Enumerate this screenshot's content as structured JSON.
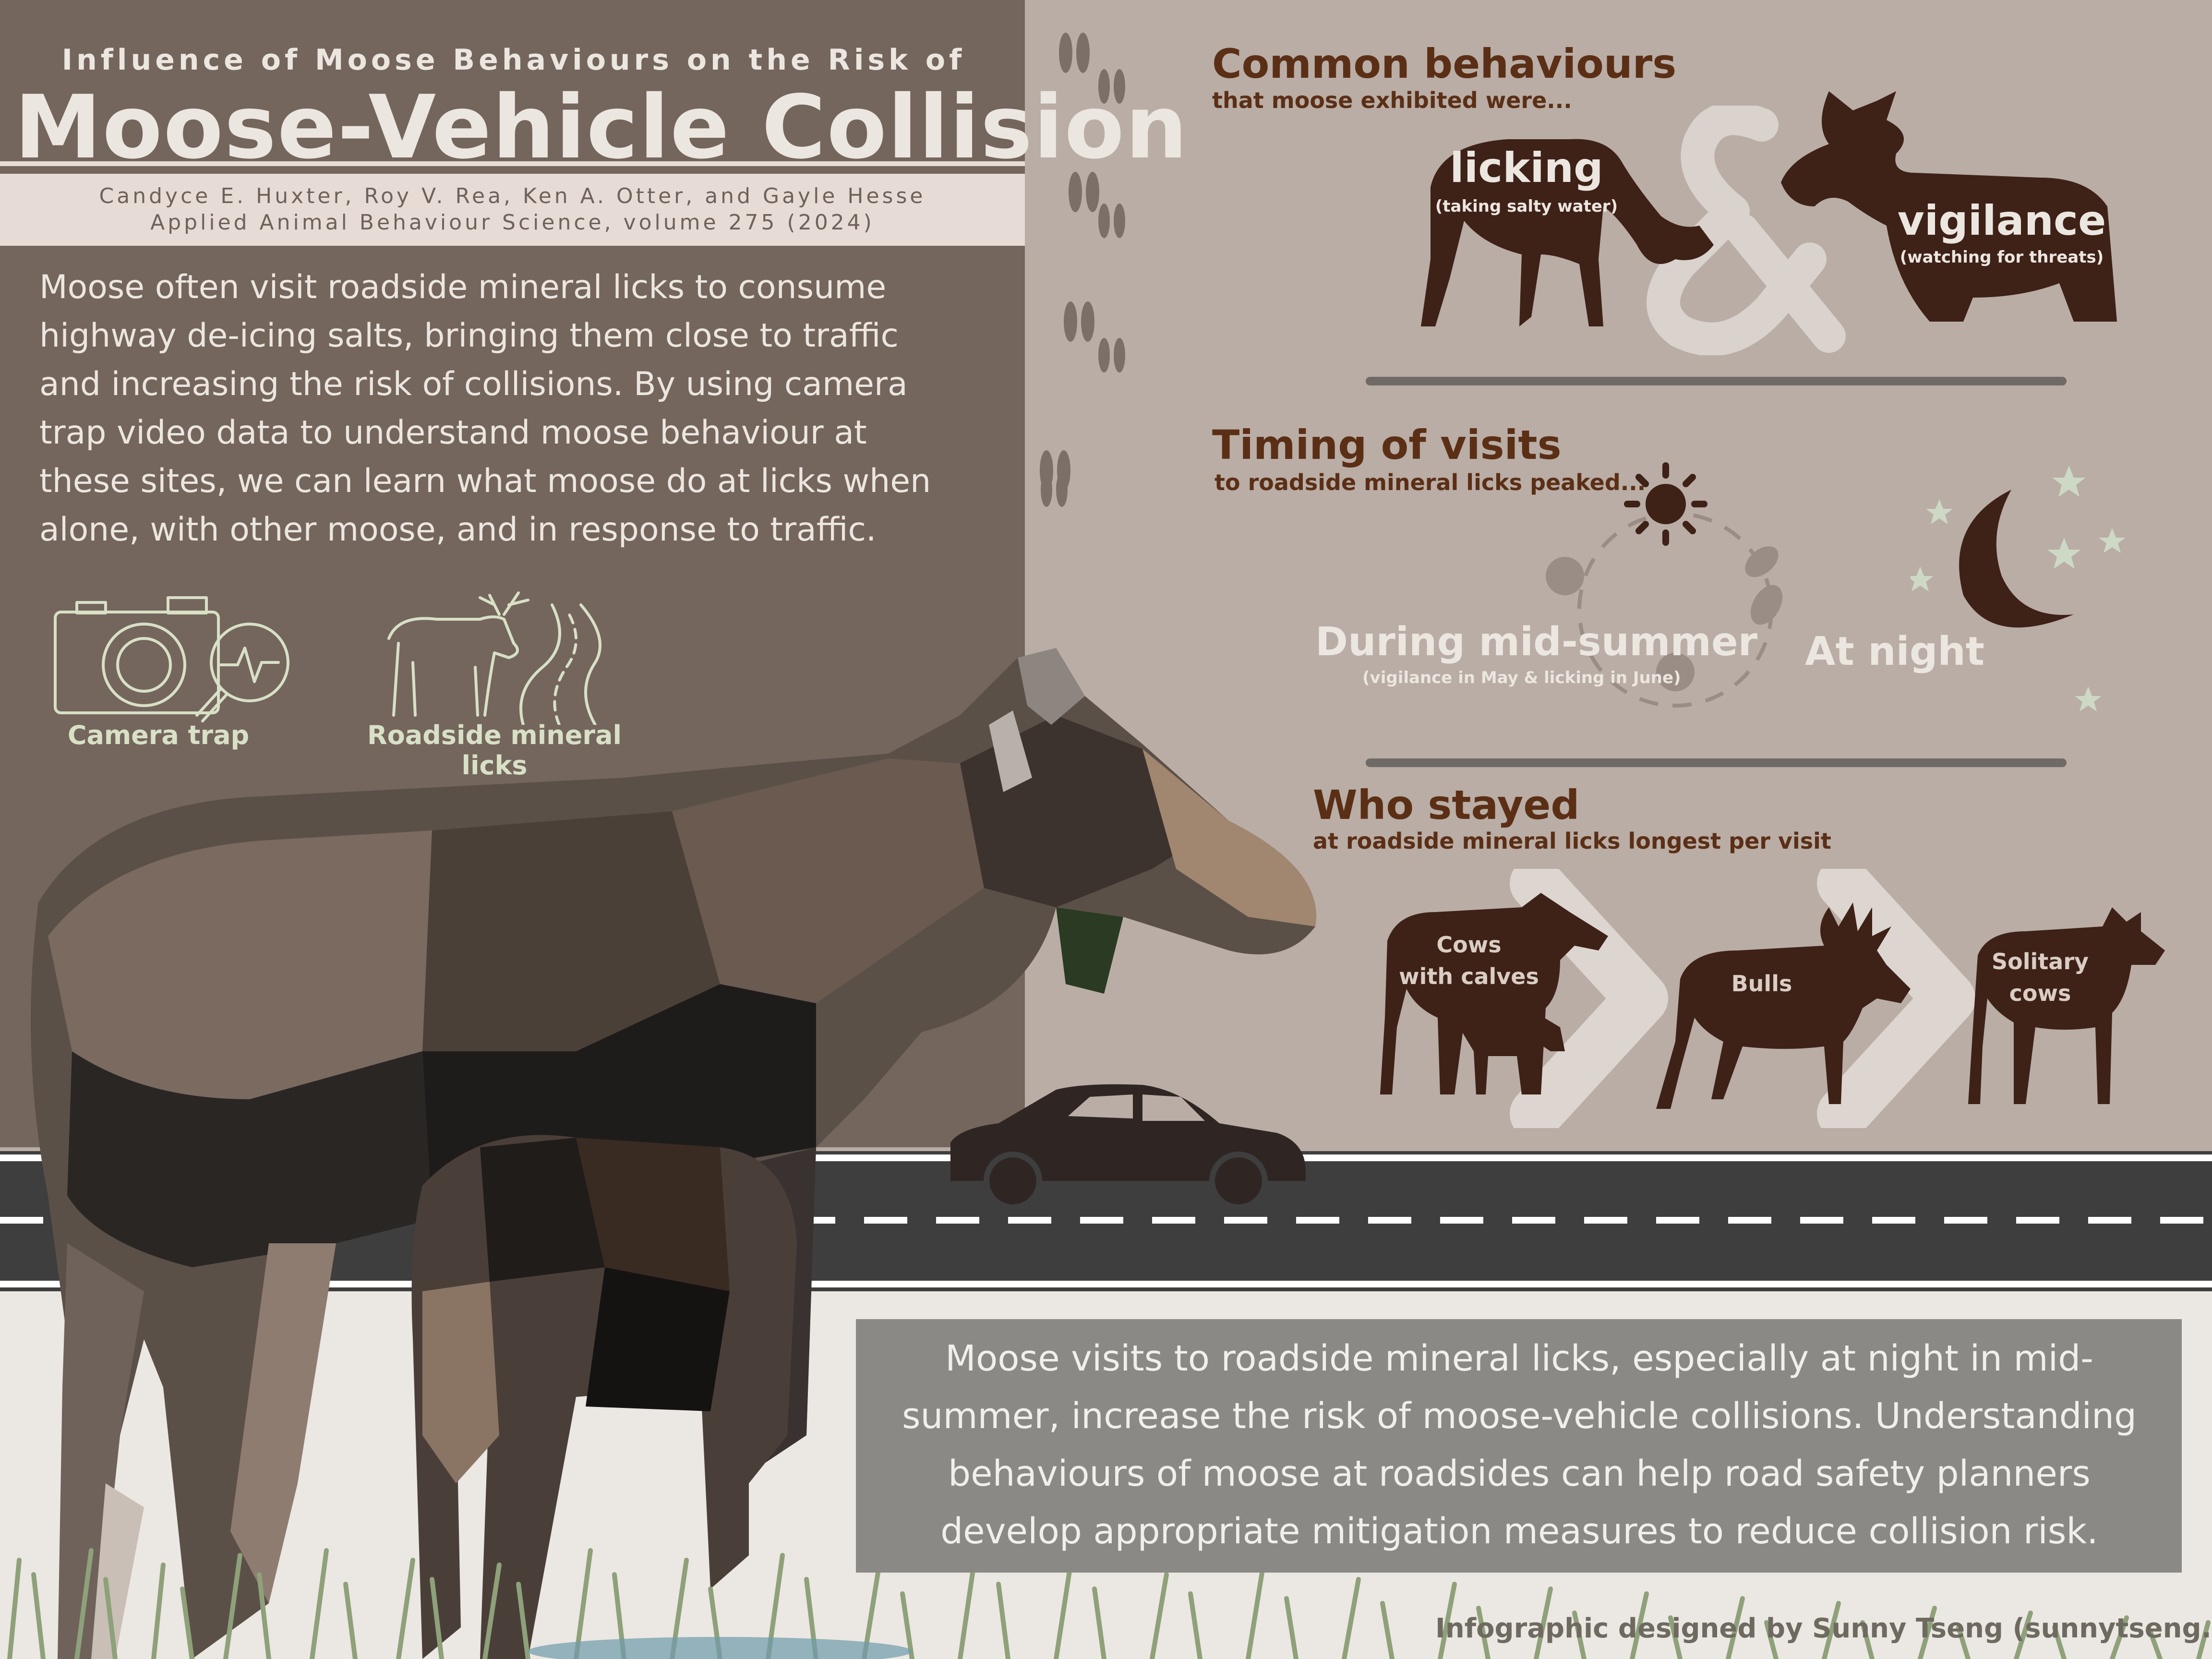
{
  "header": {
    "subtitle": "Influence of Moose Behaviours on the Risk of",
    "title": "Moose-Vehicle Collision",
    "authors": "Candyce E. Huxter, Roy V. Rea, Ken A. Otter, and Gayle Hesse",
    "journal": "Applied Animal Behaviour Science, volume 275 (2024)"
  },
  "intro": {
    "lines": [
      "Moose often visit roadside mineral licks to consume",
      "highway de-icing salts, bringing them close to traffic",
      "and increasing the risk of collisions. By using camera",
      "trap video data to understand moose behaviour at",
      "these sites, we can learn what moose do at licks when",
      "alone, with other moose, and in response to traffic."
    ]
  },
  "icons": {
    "camera_label": "Camera trap",
    "licks_label": "Roadside mineral licks"
  },
  "behaviours": {
    "title": "Common behaviours",
    "subtitle": "that moose exhibited were...",
    "licking": "licking",
    "licking_note": "(taking salty water)",
    "vigilance": "vigilance",
    "vigilance_note": "(watching for threats)"
  },
  "timing": {
    "title": "Timing of visits",
    "subtitle": "to roadside mineral licks peaked...",
    "summer": "During mid-summer",
    "summer_note": "(vigilance in May & licking in June)",
    "night": "At night"
  },
  "who": {
    "title": "Who stayed",
    "subtitle": "at roadside mineral licks longest per visit",
    "group1_line1": "Cows",
    "group1_line2": "with calves",
    "group2": "Bulls",
    "group3_line1": "Solitary",
    "group3_line2": "cows"
  },
  "conclusion": {
    "lines": [
      "Moose visits to roadside mineral licks, especially at night in mid-",
      "summer, increase the risk of moose-vehicle collisions. Understanding",
      "behaviours of moose at roadsides can help road safety planners",
      "develop appropriate mitigation measures to reduce collision risk."
    ]
  },
  "credit": "Infographic designed by Sunny Tseng (sunnytseng.ca)",
  "colors": {
    "left_panel": "#74665d",
    "right_panel": "#b9ada5",
    "accent_brown": "#5b2f16",
    "silhouette": "#3e2117",
    "road": "#3e3e3e"
  }
}
